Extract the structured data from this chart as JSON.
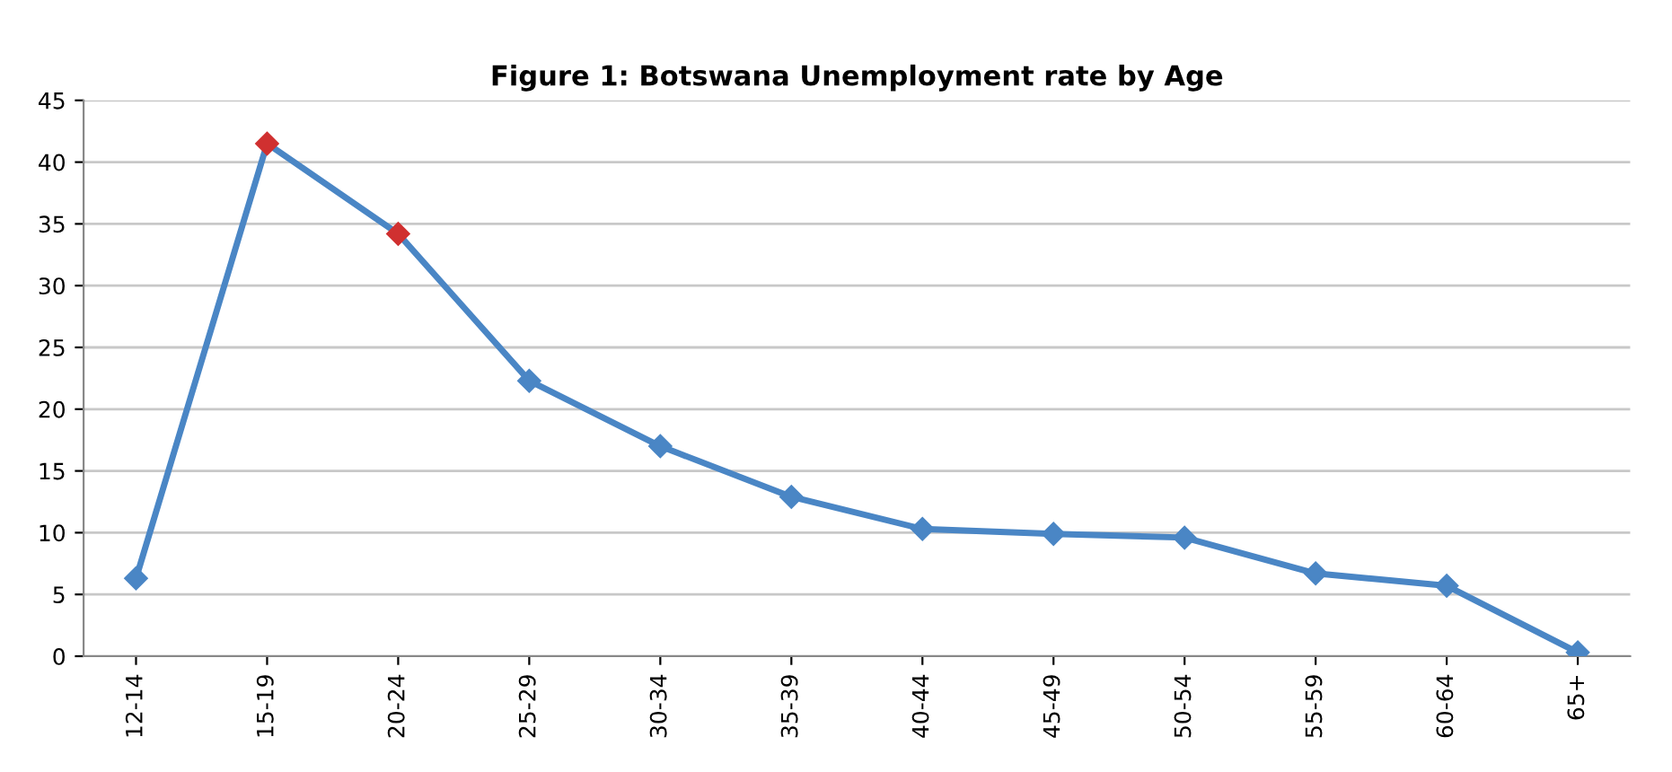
{
  "chart_data": {
    "type": "line",
    "title": "Figure 1: Botswana Unemployment rate by Age",
    "categories": [
      "12-14",
      "15-19",
      "20-24",
      "25-29",
      "30-34",
      "35-39",
      "40-44",
      "45-49",
      "50-54",
      "55-59",
      "60-64",
      "65+"
    ],
    "series": [
      {
        "color": "#4a86c5",
        "values": [
          6.3,
          41.5,
          34.2,
          22.3,
          17.0,
          12.9,
          10.3,
          9.9,
          9.6,
          6.7,
          5.7,
          0.3
        ],
        "colors": [
          "#4a86c5",
          "#d03030",
          "#d03030",
          "#4a86c5",
          "#4a86c5",
          "#4a86c5",
          "#4a86c5",
          "#4a86c5",
          "#4a86c5",
          "#4a86c5",
          "#4a86c5",
          "#4a86c5"
        ]
      }
    ],
    "ylim": [
      0,
      45
    ],
    "yticks": [
      0,
      5,
      10,
      15,
      20,
      25,
      30,
      35,
      40,
      45
    ],
    "grid": "y",
    "marker": "diamond",
    "line_style": "solid",
    "legend": false
  }
}
